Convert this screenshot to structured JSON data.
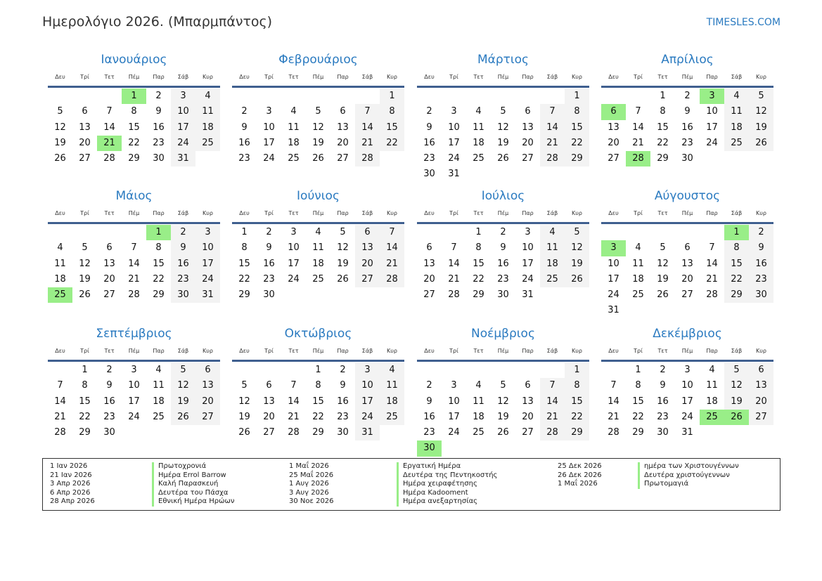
{
  "header": {
    "title": "Ημερολόγιο 2026. (Μπαρμπάντος)",
    "site": "TIMESLES.COM"
  },
  "weekdays": [
    "Δευ",
    "Τρί",
    "Τετ",
    "Πέμ",
    "Παρ",
    "Σάβ",
    "Κυρ"
  ],
  "colors": {
    "accent": "#2a7ac0",
    "holiday": "#99ee88",
    "weekend": "#f3f3f3"
  },
  "months": [
    {
      "name": "Ιανουάριος",
      "offset": 3,
      "days": 31,
      "holidays": [
        1,
        21
      ]
    },
    {
      "name": "Φεβρουάριος",
      "offset": 6,
      "days": 28,
      "holidays": []
    },
    {
      "name": "Μάρτιος",
      "offset": 6,
      "days": 31,
      "holidays": []
    },
    {
      "name": "Απρίλιος",
      "offset": 2,
      "days": 30,
      "holidays": [
        3,
        6,
        28
      ]
    },
    {
      "name": "Μάιος",
      "offset": 4,
      "days": 31,
      "holidays": [
        1,
        25
      ]
    },
    {
      "name": "Ιούνιος",
      "offset": 0,
      "days": 30,
      "holidays": []
    },
    {
      "name": "Ιούλιος",
      "offset": 2,
      "days": 31,
      "holidays": []
    },
    {
      "name": "Αύγουστος",
      "offset": 5,
      "days": 31,
      "holidays": [
        1,
        3
      ]
    },
    {
      "name": "Σεπτέμβριος",
      "offset": 1,
      "days": 30,
      "holidays": []
    },
    {
      "name": "Οκτώβριος",
      "offset": 3,
      "days": 31,
      "holidays": []
    },
    {
      "name": "Νοέμβριος",
      "offset": 6,
      "days": 30,
      "holidays": [
        30
      ]
    },
    {
      "name": "Δεκέμβριος",
      "offset": 1,
      "days": 31,
      "holidays": [
        25,
        26
      ]
    }
  ],
  "legend": [
    [
      {
        "date": "1 Ιαν 2026",
        "name": "Πρωτοχρονιά"
      },
      {
        "date": "21 Ιαν 2026",
        "name": "Ημέρα Errol Barrow"
      },
      {
        "date": "3 Απρ 2026",
        "name": "Καλή Παρασκευή"
      },
      {
        "date": "6 Απρ 2026",
        "name": "Δευτέρα του Πάσχα"
      },
      {
        "date": "28 Απρ 2026",
        "name": "Εθνική Ημέρα Ηρώων"
      }
    ],
    [
      {
        "date": "1 Μαΐ 2026",
        "name": "Εργατική Ημέρα"
      },
      {
        "date": "25 Μαΐ 2026",
        "name": "Δευτέρα της Πεντηκοστής"
      },
      {
        "date": "1 Αυγ 2026",
        "name": "Ημέρα χειραφέτησης"
      },
      {
        "date": "3 Αυγ 2026",
        "name": "Ημέρα Kadooment"
      },
      {
        "date": "30 Νοε 2026",
        "name": "Ημέρα ανεξαρτησίας"
      }
    ],
    [
      {
        "date": "25 Δεκ 2026",
        "name": "ημέρα των Χριστουγέννων"
      },
      {
        "date": "26 Δεκ 2026",
        "name": "Δευτέρα χριστούγεννων"
      },
      {
        "date": "1 Μαΐ 2026",
        "name": "Πρωτομαγιά"
      }
    ]
  ]
}
